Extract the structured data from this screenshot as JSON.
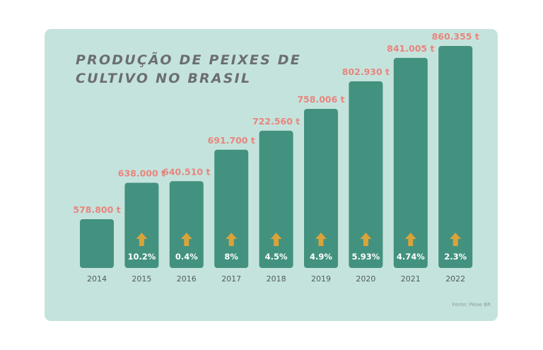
{
  "chart_data": {
    "type": "bar",
    "title_lines": [
      "PRODUÇÃO DE PEIXES DE",
      "CULTIVO NO BRASIL"
    ],
    "categories": [
      "2014",
      "2015",
      "2016",
      "2017",
      "2018",
      "2019",
      "2020",
      "2021",
      "2022"
    ],
    "values": [
      578800,
      638000,
      640510,
      691700,
      722560,
      758006,
      802930,
      841005,
      860355
    ],
    "value_labels": [
      "578.800 t",
      "638.000 t",
      "640.510 t",
      "691.700 t",
      "722.560 t",
      "758.006 t",
      "802.930 t",
      "841.005 t",
      "860.355 t"
    ],
    "growth_labels": [
      "",
      "10.2%",
      "0.4%",
      "8%",
      "4.5%",
      "4.9%",
      "5.93%",
      "4.74%",
      "2.3%"
    ],
    "growth_icon": "arrow-up-icon",
    "xlabel": "",
    "ylabel": "",
    "grid": false,
    "legend": "none",
    "colors": {
      "background": "#c5e3dd",
      "bar": "#42927f",
      "value_label": "#e8857c",
      "growth_label": "#ffffff",
      "arrow": "#d9a33a",
      "axis_label": "#4f5b59",
      "title": "#6b6e70"
    }
  },
  "source": "Fonte: Peixe BR"
}
